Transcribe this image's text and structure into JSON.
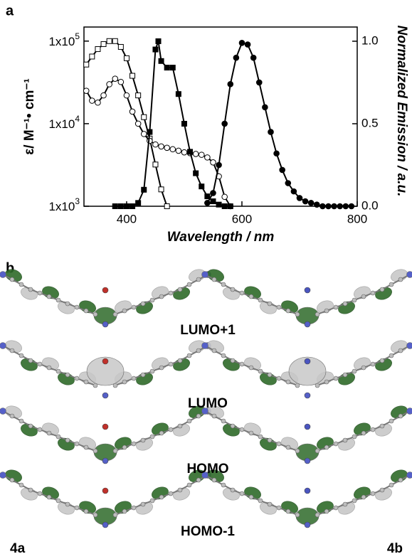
{
  "panel_labels": [
    "a",
    "b"
  ],
  "chart_data": {
    "type": "line",
    "xlabel": "Wavelength / nm",
    "ylabel": "ε/ M⁻¹• cm⁻¹",
    "y2label": "Normalized Emission / a.u.",
    "xlim": [
      326,
      800
    ],
    "xticks": [
      400,
      600,
      800
    ],
    "ylim": [
      1000,
      148000
    ],
    "ylog": true,
    "yticks": [
      {
        "value": 1000,
        "label": "1x10",
        "exponent": "3"
      },
      {
        "value": 10000,
        "label": "1x10",
        "exponent": "4"
      },
      {
        "value": 100000,
        "label": "1x10",
        "exponent": "5"
      }
    ],
    "y2lim": [
      0,
      1.086
    ],
    "y2ticks": [
      {
        "value": 0,
        "label": "0.0"
      },
      {
        "value": 0.5,
        "label": "0.5"
      },
      {
        "value": 1,
        "label": "1.0"
      }
    ],
    "grid": false,
    "series": [
      {
        "color": "#000000",
        "marker": "square",
        "filled": false,
        "axis": "y",
        "x": [
          330,
          340,
          350,
          360,
          370,
          380,
          390,
          400,
          410,
          420,
          430,
          440,
          450,
          460,
          470
        ],
        "values": [
          52000,
          65000,
          80000,
          92000,
          100000,
          100000,
          85000,
          62000,
          38000,
          22000,
          12000,
          6600,
          3200,
          1600,
          1000
        ]
      },
      {
        "color": "#000000",
        "marker": "circle",
        "filled": false,
        "axis": "y",
        "x": [
          330,
          340,
          350,
          360,
          370,
          380,
          390,
          400,
          410,
          420,
          430,
          440,
          450,
          460,
          470,
          480,
          490,
          500,
          510,
          520,
          530,
          540,
          550,
          560,
          570,
          580
        ],
        "values": [
          25000,
          19000,
          18000,
          22000,
          30000,
          35000,
          32000,
          22000,
          14000,
          10000,
          7500,
          6200,
          5600,
          5300,
          5100,
          4900,
          4700,
          4500,
          4400,
          4300,
          4200,
          3900,
          3400,
          2300,
          1300,
          1000
        ]
      },
      {
        "color": "#000000",
        "marker": "square",
        "filled": true,
        "axis": "y2",
        "x": [
          380,
          390,
          400,
          410,
          420,
          430,
          440,
          450,
          455,
          460,
          470,
          480,
          490,
          500,
          510,
          520,
          530,
          540,
          550,
          560,
          570,
          580
        ],
        "values": [
          0,
          0,
          0,
          0,
          0.02,
          0.1,
          0.45,
          0.95,
          1.0,
          0.88,
          0.84,
          0.84,
          0.68,
          0.5,
          0.33,
          0.2,
          0.12,
          0.06,
          0.03,
          0.01,
          0,
          0
        ]
      },
      {
        "color": "#000000",
        "marker": "circle",
        "filled": true,
        "axis": "y2",
        "x": [
          540,
          550,
          560,
          570,
          580,
          590,
          600,
          610,
          620,
          630,
          640,
          650,
          660,
          670,
          680,
          690,
          700,
          710,
          720,
          730,
          740,
          750,
          760,
          770,
          780,
          790
        ],
        "values": [
          0.02,
          0.08,
          0.25,
          0.5,
          0.74,
          0.9,
          0.99,
          0.98,
          0.9,
          0.75,
          0.6,
          0.45,
          0.32,
          0.22,
          0.14,
          0.09,
          0.05,
          0.03,
          0.02,
          0.01,
          0,
          0,
          0,
          0,
          0,
          0
        ]
      }
    ]
  },
  "orbitals": {
    "labels": [
      "LUMO+1",
      "LUMO",
      "HOMO",
      "HOMO-1"
    ],
    "compounds": [
      "4a",
      "4b"
    ]
  }
}
